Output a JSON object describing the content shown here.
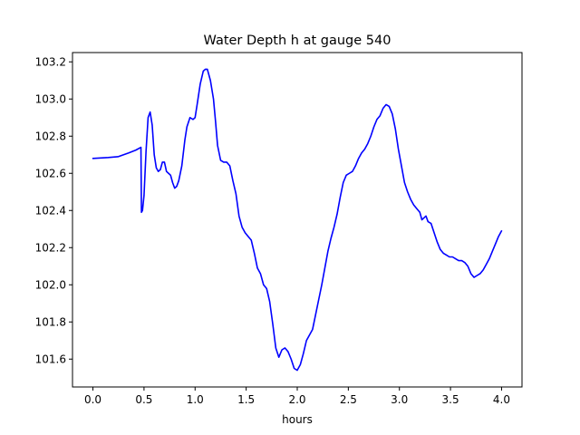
{
  "chart_data": {
    "type": "line",
    "title": "Water Depth h at gauge 540",
    "xlabel": "hours",
    "ylabel": "",
    "xlim": [
      -0.2,
      4.2
    ],
    "ylim": [
      101.45,
      103.25
    ],
    "xticks": [
      0.0,
      0.5,
      1.0,
      1.5,
      2.0,
      2.5,
      3.0,
      3.5,
      4.0
    ],
    "xtick_labels": [
      "0.0",
      "0.5",
      "1.0",
      "1.5",
      "2.0",
      "2.5",
      "3.0",
      "3.5",
      "4.0"
    ],
    "yticks": [
      101.6,
      101.8,
      102.0,
      102.2,
      102.4,
      102.6,
      102.8,
      103.0,
      103.2
    ],
    "ytick_labels": [
      "101.6",
      "101.8",
      "102.0",
      "102.2",
      "102.4",
      "102.6",
      "102.8",
      "103.0",
      "103.2"
    ],
    "grid": false,
    "series": [
      {
        "color": "#0000ff",
        "x": [
          0.0,
          0.15,
          0.25,
          0.35,
          0.42,
          0.47,
          0.475,
          0.485,
          0.5,
          0.52,
          0.54,
          0.56,
          0.58,
          0.6,
          0.62,
          0.64,
          0.66,
          0.68,
          0.7,
          0.72,
          0.74,
          0.76,
          0.78,
          0.8,
          0.82,
          0.84,
          0.87,
          0.9,
          0.92,
          0.95,
          0.98,
          1.0,
          1.02,
          1.05,
          1.08,
          1.1,
          1.12,
          1.15,
          1.18,
          1.2,
          1.22,
          1.25,
          1.28,
          1.31,
          1.34,
          1.37,
          1.4,
          1.43,
          1.46,
          1.49,
          1.52,
          1.55,
          1.58,
          1.61,
          1.64,
          1.67,
          1.7,
          1.73,
          1.76,
          1.79,
          1.82,
          1.85,
          1.88,
          1.91,
          1.94,
          1.97,
          2.0,
          2.03,
          2.06,
          2.09,
          2.12,
          2.15,
          2.18,
          2.21,
          2.24,
          2.27,
          2.3,
          2.33,
          2.36,
          2.39,
          2.42,
          2.45,
          2.48,
          2.51,
          2.54,
          2.57,
          2.6,
          2.63,
          2.66,
          2.69,
          2.72,
          2.75,
          2.78,
          2.81,
          2.84,
          2.87,
          2.9,
          2.93,
          2.96,
          2.99,
          3.02,
          3.05,
          3.08,
          3.11,
          3.14,
          3.17,
          3.2,
          3.22,
          3.24,
          3.26,
          3.28,
          3.31,
          3.34,
          3.37,
          3.4,
          3.43,
          3.46,
          3.49,
          3.52,
          3.55,
          3.58,
          3.61,
          3.64,
          3.67,
          3.7,
          3.73,
          3.76,
          3.79,
          3.82,
          3.85,
          3.88,
          3.91,
          3.94,
          3.97,
          4.0
        ],
        "y": [
          102.68,
          102.685,
          102.69,
          102.71,
          102.725,
          102.74,
          102.39,
          102.4,
          102.48,
          102.72,
          102.9,
          102.93,
          102.86,
          102.7,
          102.63,
          102.61,
          102.62,
          102.66,
          102.66,
          102.61,
          102.6,
          102.59,
          102.55,
          102.52,
          102.53,
          102.56,
          102.64,
          102.78,
          102.85,
          102.9,
          102.89,
          102.9,
          102.97,
          103.08,
          103.15,
          103.16,
          103.16,
          103.1,
          103.0,
          102.88,
          102.75,
          102.67,
          102.66,
          102.66,
          102.64,
          102.56,
          102.49,
          102.37,
          102.31,
          102.28,
          102.26,
          102.24,
          102.17,
          102.09,
          102.06,
          102.0,
          101.98,
          101.91,
          101.79,
          101.66,
          101.61,
          101.65,
          101.66,
          101.64,
          101.6,
          101.55,
          101.54,
          101.57,
          101.63,
          101.7,
          101.73,
          101.76,
          101.84,
          101.92,
          102.0,
          102.09,
          102.18,
          102.25,
          102.31,
          102.38,
          102.47,
          102.55,
          102.59,
          102.6,
          102.61,
          102.64,
          102.68,
          102.71,
          102.73,
          102.76,
          102.8,
          102.85,
          102.89,
          102.91,
          102.95,
          102.97,
          102.96,
          102.92,
          102.84,
          102.73,
          102.64,
          102.55,
          102.5,
          102.46,
          102.43,
          102.41,
          102.39,
          102.35,
          102.36,
          102.37,
          102.34,
          102.33,
          102.28,
          102.23,
          102.19,
          102.17,
          102.16,
          102.15,
          102.15,
          102.14,
          102.13,
          102.13,
          102.12,
          102.1,
          102.06,
          102.04,
          102.05,
          102.06,
          102.08,
          102.11,
          102.14,
          102.18,
          102.22,
          102.26,
          102.29
        ]
      }
    ]
  }
}
